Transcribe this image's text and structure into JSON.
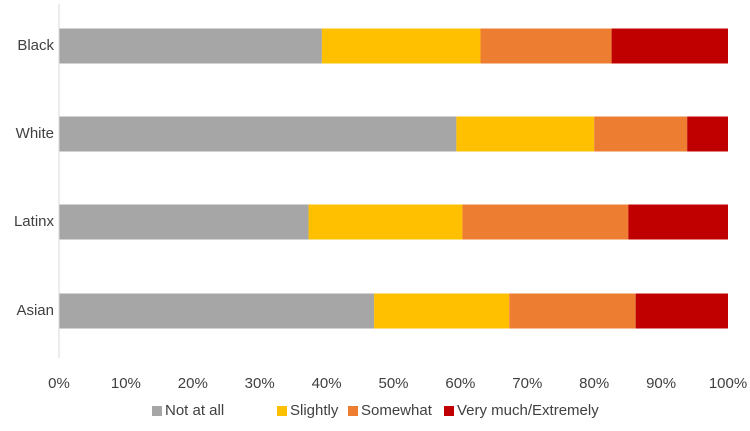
{
  "chart_data": {
    "type": "bar",
    "orientation": "horizontal",
    "stacked": true,
    "categories": [
      "Black",
      "White",
      "Latinx",
      "Asian"
    ],
    "series": [
      {
        "name": "Not at all",
        "color": "#a6a6a6",
        "values": [
          39.3,
          59.4,
          37.3,
          47.1
        ]
      },
      {
        "name": "Slightly",
        "color": "#ffc000",
        "values": [
          23.7,
          20.6,
          23.0,
          20.2
        ]
      },
      {
        "name": "Somewhat",
        "color": "#ed7d31",
        "values": [
          19.6,
          13.9,
          24.8,
          18.9
        ]
      },
      {
        "name": "Very much/Extremely",
        "color": "#c00000",
        "values": [
          17.4,
          6.1,
          14.9,
          13.8
        ]
      }
    ],
    "xlim": [
      0,
      100
    ],
    "x_ticks": [
      "0%",
      "10%",
      "20%",
      "30%",
      "40%",
      "50%",
      "60%",
      "70%",
      "80%",
      "90%",
      "100%"
    ],
    "title": "",
    "xlabel": "",
    "ylabel": "",
    "grid": false,
    "legend_position": "bottom"
  }
}
